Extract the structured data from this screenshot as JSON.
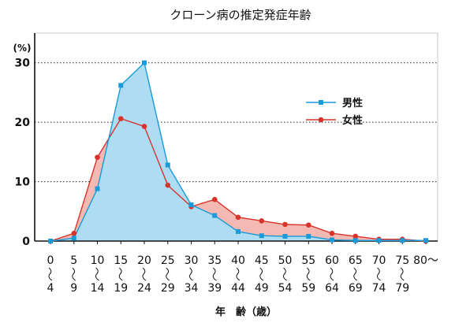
{
  "chart_data": {
    "type": "area",
    "title": "クローン病の推定発症年齢",
    "ylabel": "(%)",
    "xlabel": "年　齢（歳）",
    "ylim": [
      0,
      35
    ],
    "y_ticks": [
      0,
      10,
      20,
      30
    ],
    "grid": "horizontal dotted at 10, 20, 30",
    "legend_position": "right",
    "categories": [
      {
        "top": "0",
        "bottom": "4"
      },
      {
        "top": "5",
        "bottom": "9"
      },
      {
        "top": "10",
        "bottom": "14"
      },
      {
        "top": "15",
        "bottom": "19"
      },
      {
        "top": "20",
        "bottom": "24"
      },
      {
        "top": "25",
        "bottom": "29"
      },
      {
        "top": "30",
        "bottom": "34"
      },
      {
        "top": "35",
        "bottom": "39"
      },
      {
        "top": "40",
        "bottom": "44"
      },
      {
        "top": "45",
        "bottom": "49"
      },
      {
        "top": "50",
        "bottom": "54"
      },
      {
        "top": "55",
        "bottom": "59"
      },
      {
        "top": "60",
        "bottom": "64"
      },
      {
        "top": "65",
        "bottom": "69"
      },
      {
        "top": "70",
        "bottom": "74"
      },
      {
        "top": "75",
        "bottom": "79"
      },
      {
        "top": "80〜",
        "bottom": ""
      }
    ],
    "series": [
      {
        "name": "男性",
        "color": "#1a9ad8",
        "fill": "#aedcf3",
        "marker": "square",
        "values": [
          0,
          0.5,
          8.8,
          26.2,
          30,
          12.8,
          6.1,
          4.3,
          1.6,
          0.9,
          0.8,
          0.8,
          0.2,
          0.1,
          0.1,
          0.1,
          0.1
        ]
      },
      {
        "name": "女性",
        "color": "#d7342c",
        "fill": "#f4b9b3",
        "marker": "circle",
        "values": [
          0,
          1.3,
          14.1,
          20.6,
          19.3,
          9.4,
          5.8,
          7.0,
          4.0,
          3.4,
          2.8,
          2.7,
          1.3,
          0.8,
          0.3,
          0.3,
          0
        ]
      }
    ]
  }
}
